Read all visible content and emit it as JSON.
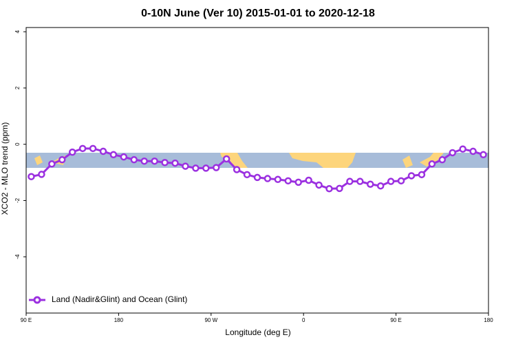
{
  "chart_data": {
    "type": "line",
    "title": "0-10N June (Ver 10)   2015-01-01 to 2020-12-18",
    "x_label": "Longitude (deg E)",
    "y_label": "XCO2 - MLO trend (ppm)",
    "x": [
      95,
      105,
      115,
      125,
      135,
      145,
      155,
      165,
      175,
      185,
      195,
      205,
      215,
      225,
      235,
      245,
      255,
      265,
      275,
      285,
      295,
      305,
      315,
      325,
      335,
      345,
      355,
      365,
      375,
      385,
      395,
      405,
      415,
      425,
      435,
      445,
      455,
      465,
      475,
      485,
      495,
      505,
      515,
      525,
      535
    ],
    "series": [
      {
        "name": "Land (Nadir&Glint) and Ocean (Glint)",
        "color": "#9b30e0",
        "values": [
          -1.15,
          -1.07,
          -0.7,
          -0.55,
          -0.28,
          -0.15,
          -0.15,
          -0.25,
          -0.37,
          -0.45,
          -0.55,
          -0.6,
          -0.6,
          -0.65,
          -0.67,
          -0.78,
          -0.85,
          -0.85,
          -0.83,
          -0.52,
          -0.9,
          -1.08,
          -1.18,
          -1.22,
          -1.25,
          -1.3,
          -1.35,
          -1.28,
          -1.45,
          -1.58,
          -1.57,
          -1.32,
          -1.32,
          -1.42,
          -1.48,
          -1.32,
          -1.3,
          -1.12,
          -1.08,
          -0.7,
          -0.55,
          -0.3,
          -0.17,
          -0.25,
          -0.37
        ]
      }
    ],
    "xlim": [
      90,
      540
    ],
    "xticks": [
      {
        "value": 90,
        "label": "90 E"
      },
      180,
      {
        "value": 270,
        "label": "90 W"
      },
      {
        "value": 360,
        "label": "0"
      },
      {
        "value": 450,
        "label": "90 E"
      },
      {
        "value": 540,
        "label": "180"
      }
    ],
    "ylim": [
      -6,
      4.15
    ],
    "yticks": [
      -4,
      -2,
      0,
      2,
      4
    ],
    "legend": "bottom-left"
  }
}
